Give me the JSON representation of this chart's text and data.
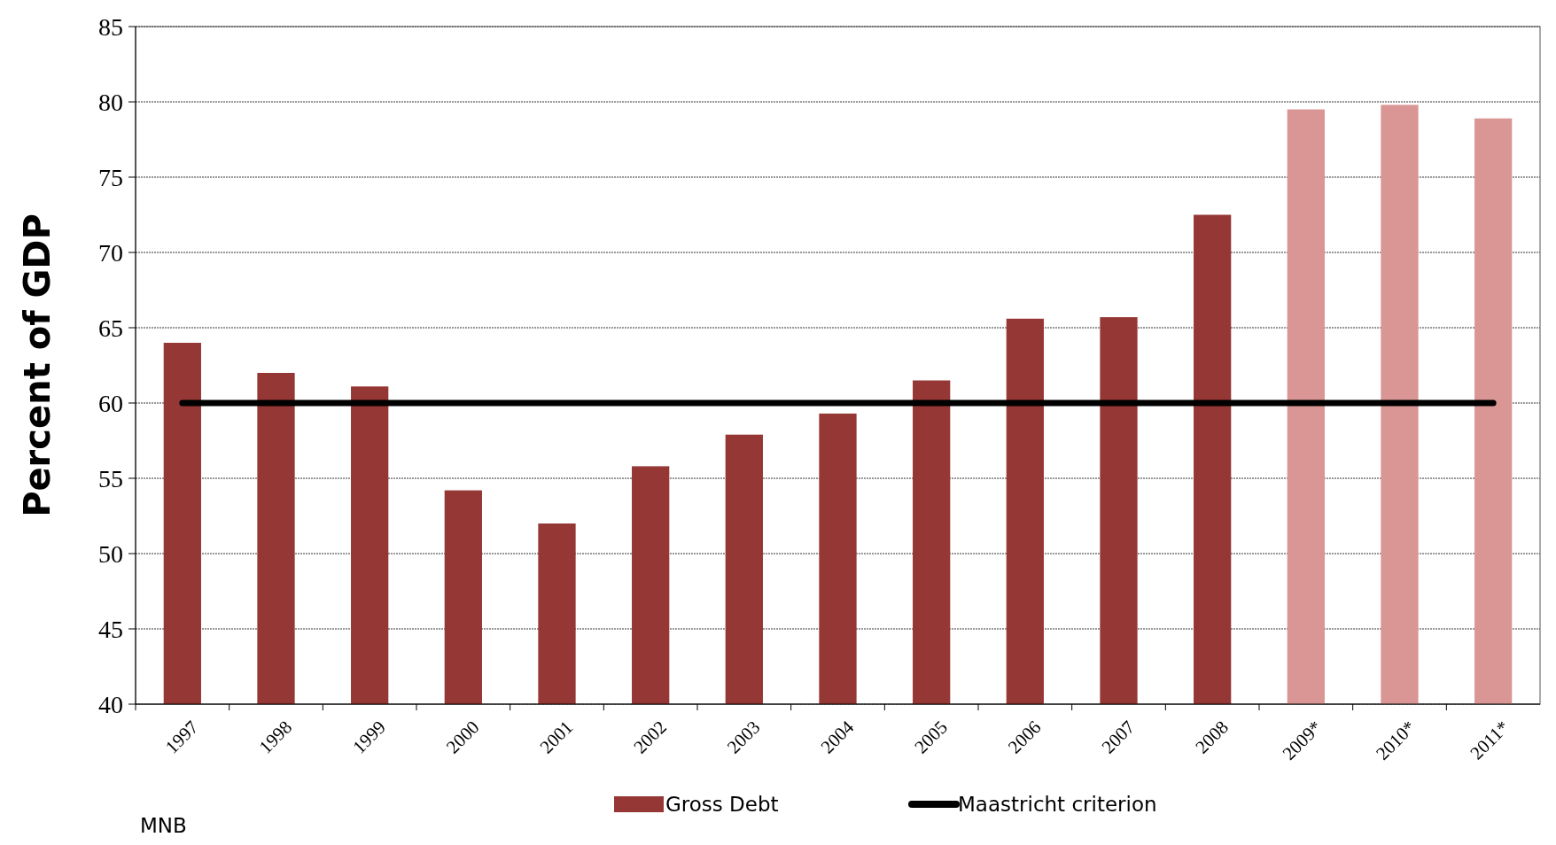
{
  "chart_data": {
    "type": "bar",
    "ylabel": "Percent of GDP",
    "categories": [
      "1997",
      "1998",
      "1999",
      "2000",
      "2001",
      "2002",
      "2003",
      "2004",
      "2005",
      "2006",
      "2007",
      "2008",
      "2009*",
      "2010*",
      "2011*"
    ],
    "series": [
      {
        "name": "Gross Debt",
        "color": "#953735",
        "colors": [
          "#953735",
          "#953735",
          "#953735",
          "#953735",
          "#953735",
          "#953735",
          "#953735",
          "#953735",
          "#953735",
          "#953735",
          "#953735",
          "#953735",
          "#d99694",
          "#d99694",
          "#d99694"
        ],
        "values": [
          64.0,
          62.0,
          61.1,
          54.2,
          52.0,
          55.8,
          57.9,
          59.3,
          61.5,
          65.6,
          65.7,
          72.5,
          79.5,
          79.8,
          78.9
        ]
      },
      {
        "name": "Maastricht criterion",
        "type": "line",
        "color": "#000000",
        "values": [
          60,
          60,
          60,
          60,
          60,
          60,
          60,
          60,
          60,
          60,
          60,
          60,
          60,
          60,
          60
        ]
      }
    ],
    "ylim": [
      40,
      85
    ],
    "yticks": [
      40,
      45,
      50,
      55,
      60,
      65,
      70,
      75,
      80,
      85
    ],
    "grid": "y",
    "legend": "bottom",
    "annotations": [
      "MNB"
    ]
  }
}
